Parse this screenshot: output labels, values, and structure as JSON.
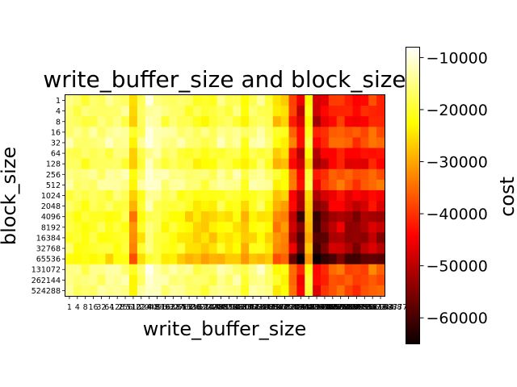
{
  "chart_data": {
    "type": "heatmap",
    "title": "write_buffer_size and block_size",
    "xlabel": "write_buffer_size",
    "ylabel": "block_size",
    "x_categories": [
      "1",
      "4",
      "8",
      "16",
      "32",
      "64",
      "128",
      "256",
      "512",
      "1024",
      "2048",
      "4096",
      "8192",
      "16384",
      "32768",
      "65536",
      "131072",
      "262144",
      "524288",
      "1048576",
      "2097152",
      "4194304",
      "8388608",
      "16777216",
      "33554432",
      "67108864",
      "134217728",
      "268435456",
      "536870912",
      "1073741824",
      "2147483648",
      "4294967296",
      "8589934592",
      "17179869184",
      "34359738368",
      "68719476736",
      "137438953472",
      "274877906944",
      "549755813888",
      "1099511627776"
    ],
    "y_categories": [
      "1",
      "4",
      "8",
      "16",
      "32",
      "64",
      "128",
      "256",
      "512",
      "1024",
      "2048",
      "4096",
      "8192",
      "16384",
      "32768",
      "65536",
      "131072",
      "262144",
      "524288"
    ],
    "colorbar": {
      "label": "cost",
      "range": [
        -65000,
        -8000
      ],
      "ticks": [
        -10000,
        -20000,
        -30000,
        -40000,
        -50000,
        -60000
      ],
      "tick_labels": [
        "−10000",
        "−20000",
        "−30000",
        "−40000",
        "−50000",
        "−60000"
      ],
      "colormap": "hot"
    }
  }
}
